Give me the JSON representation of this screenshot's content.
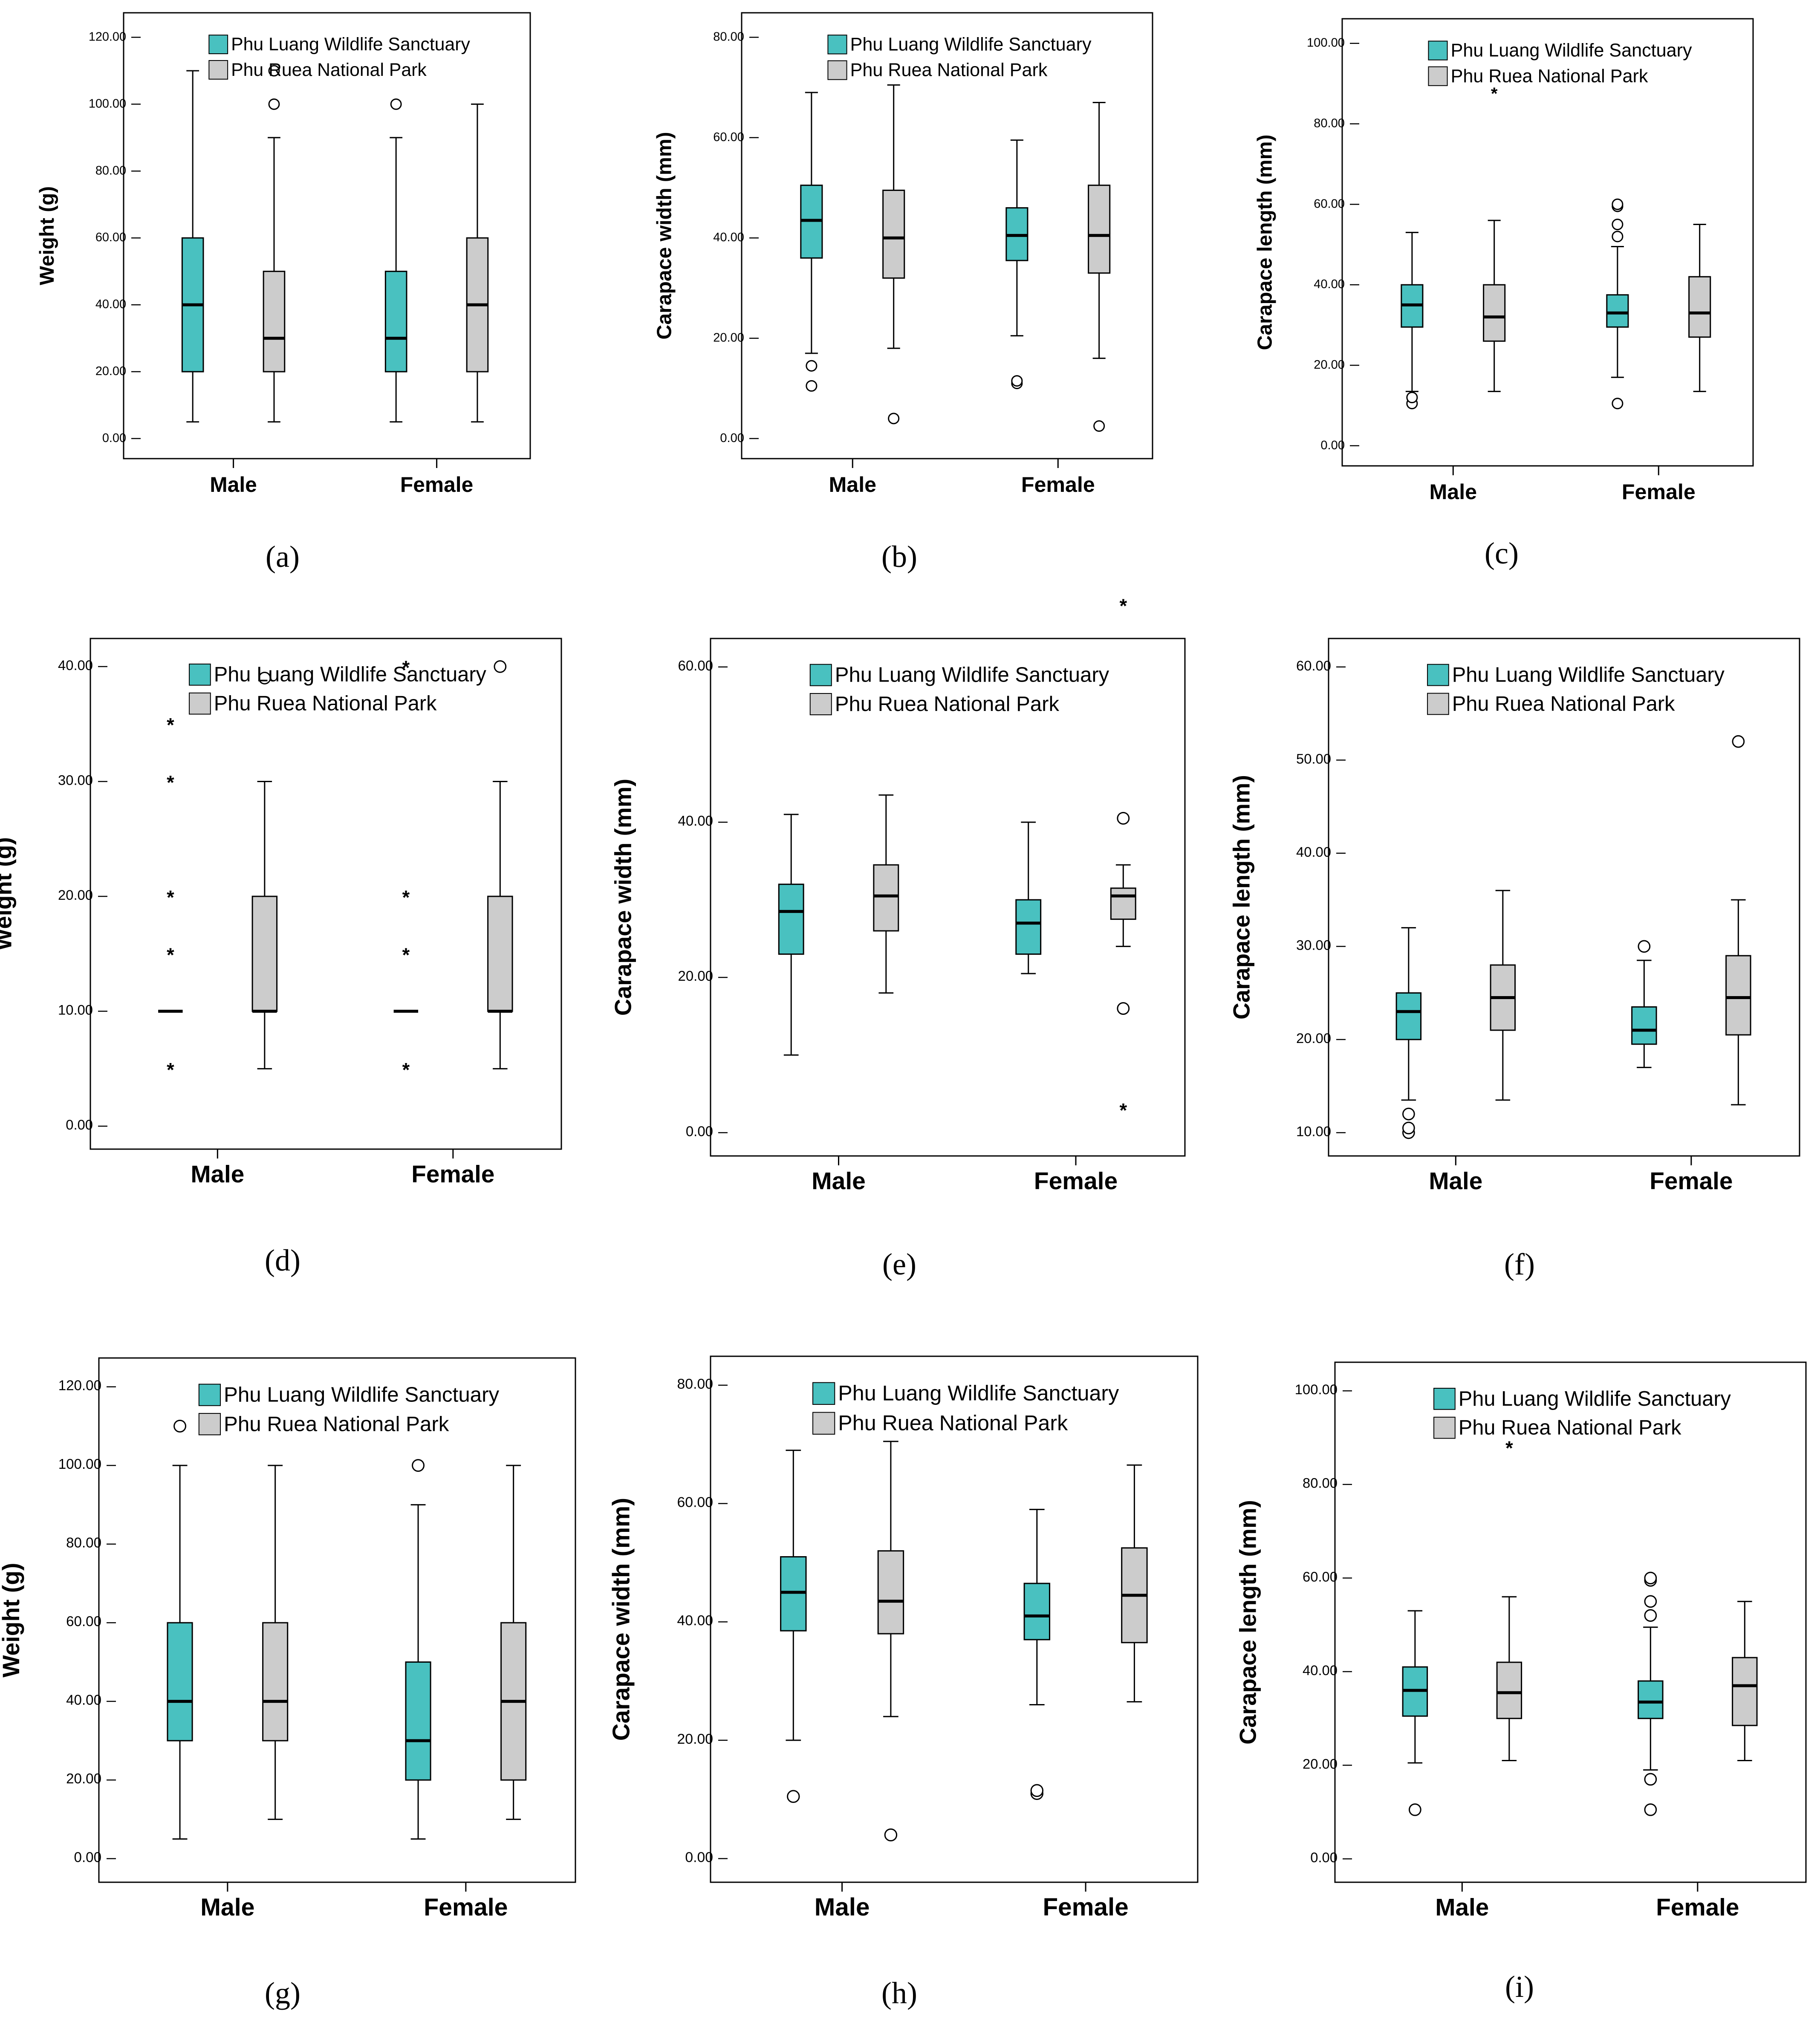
{
  "colors": {
    "teal": "#49c1c0",
    "gray": "#cccccc",
    "frame": "#000000"
  },
  "chart_data": [
    {
      "id": "a",
      "caption": "(a)",
      "type": "boxplot",
      "ylabel": "Weight (g)",
      "ylim": [
        0,
        120
      ],
      "yticks": [
        "0.00",
        "20.00",
        "40.00",
        "60.00",
        "80.00",
        "100.00",
        "120.00"
      ],
      "ytick_values": [
        0,
        20,
        40,
        60,
        80,
        100,
        120
      ],
      "categories": [
        "Male",
        "Female"
      ],
      "legend": [
        "Phu Luang Wildlife Sanctuary",
        "Phu Ruea National Park"
      ],
      "series": [
        {
          "name": "Phu Luang Wildlife Sanctuary",
          "boxes": [
            {
              "min": 5,
              "q1": 20,
              "median": 40,
              "q3": 60,
              "max": 110,
              "outliers": [],
              "extremes": []
            },
            {
              "min": 5,
              "q1": 20,
              "median": 30,
              "q3": 50,
              "max": 90,
              "outliers": [
                100
              ],
              "extremes": []
            }
          ]
        },
        {
          "name": "Phu Ruea National Park",
          "boxes": [
            {
              "min": 5,
              "q1": 20,
              "median": 30,
              "q3": 50,
              "max": 90,
              "outliers": [
                100,
                110
              ],
              "extremes": []
            },
            {
              "min": 5,
              "q1": 20,
              "median": 40,
              "q3": 60,
              "max": 100,
              "outliers": [],
              "extremes": []
            }
          ]
        }
      ]
    },
    {
      "id": "b",
      "caption": "(b)",
      "type": "boxplot",
      "ylabel": "Carapace width (mm)",
      "ylim": [
        0,
        80
      ],
      "yticks": [
        "0.00",
        "20.00",
        "40.00",
        "60.00",
        "80.00"
      ],
      "ytick_values": [
        0,
        20,
        40,
        60,
        80
      ],
      "categories": [
        "Male",
        "Female"
      ],
      "legend": [
        "Phu Luang Wildlife Sanctuary",
        "Phu Ruea National Park"
      ],
      "series": [
        {
          "name": "Phu Luang Wildlife Sanctuary",
          "boxes": [
            {
              "min": 17,
              "q1": 36,
              "median": 43.5,
              "q3": 50.5,
              "max": 69,
              "outliers": [
                10.5,
                14.5
              ],
              "extremes": []
            },
            {
              "min": 20.5,
              "q1": 35.5,
              "median": 40.5,
              "q3": 46,
              "max": 59.5,
              "outliers": [
                11,
                11.5
              ],
              "extremes": []
            }
          ]
        },
        {
          "name": "Phu Ruea National Park",
          "boxes": [
            {
              "min": 18,
              "q1": 32,
              "median": 40,
              "q3": 49.5,
              "max": 70.5,
              "outliers": [
                4
              ],
              "extremes": []
            },
            {
              "min": 16,
              "q1": 33,
              "median": 40.5,
              "q3": 50.5,
              "max": 67,
              "outliers": [
                2.5
              ],
              "extremes": []
            }
          ]
        }
      ]
    },
    {
      "id": "c",
      "caption": "(c)",
      "type": "boxplot",
      "ylabel": "Carapace length (mm)",
      "ylim": [
        0,
        100
      ],
      "yticks": [
        "0.00",
        "20.00",
        "40.00",
        "60.00",
        "80.00",
        "100.00"
      ],
      "ytick_values": [
        0,
        20,
        40,
        60,
        80,
        100
      ],
      "categories": [
        "Male",
        "Female"
      ],
      "legend": [
        "Phu Luang Wildlife Sanctuary",
        "Phu Ruea National Park"
      ],
      "series": [
        {
          "name": "Phu Luang Wildlife Sanctuary",
          "boxes": [
            {
              "min": 13.5,
              "q1": 29.5,
              "median": 35,
              "q3": 40,
              "max": 53,
              "outliers": [
                10.5,
                12
              ],
              "extremes": []
            },
            {
              "min": 17,
              "q1": 29.5,
              "median": 33,
              "q3": 37.5,
              "max": 49.5,
              "outliers": [
                52,
                55,
                59.5,
                60,
                10.5
              ],
              "extremes": []
            }
          ]
        },
        {
          "name": "Phu Ruea National Park",
          "boxes": [
            {
              "min": 13.5,
              "q1": 26,
              "median": 32,
              "q3": 40,
              "max": 56,
              "outliers": [],
              "extremes": [
                88
              ]
            },
            {
              "min": 13.5,
              "q1": 27,
              "median": 33,
              "q3": 42,
              "max": 55,
              "outliers": [],
              "extremes": []
            }
          ]
        }
      ]
    },
    {
      "id": "d",
      "caption": "(d)",
      "type": "boxplot",
      "ylabel": "Weight (g)",
      "ylim": [
        0,
        40
      ],
      "yticks": [
        "0.00",
        "10.00",
        "20.00",
        "30.00",
        "40.00"
      ],
      "ytick_values": [
        0,
        10,
        20,
        30,
        40
      ],
      "categories": [
        "Male",
        "Female"
      ],
      "legend": [
        "Phu Luang Wildlife Sanctuary",
        "Phu Ruea National Park"
      ],
      "series": [
        {
          "name": "Phu Luang Wildlife Sanctuary",
          "boxes": [
            {
              "min": 10,
              "q1": 10,
              "median": 10,
              "q3": 10,
              "max": 10,
              "outliers": [],
              "extremes": [
                5,
                15,
                20,
                30,
                35
              ]
            },
            {
              "min": 10,
              "q1": 10,
              "median": 10,
              "q3": 10,
              "max": 10,
              "outliers": [],
              "extremes": [
                5,
                15,
                20,
                40
              ]
            }
          ]
        },
        {
          "name": "Phu Ruea National Park",
          "boxes": [
            {
              "min": 5,
              "q1": 10,
              "median": 10,
              "q3": 20,
              "max": 30,
              "outliers": [
                39
              ],
              "extremes": []
            },
            {
              "min": 5,
              "q1": 10,
              "median": 10,
              "q3": 20,
              "max": 30,
              "outliers": [
                40
              ],
              "extremes": []
            }
          ]
        }
      ]
    },
    {
      "id": "e",
      "caption": "(e)",
      "type": "boxplot",
      "ylabel": "Carapace width (mm)",
      "ylim": [
        0,
        60
      ],
      "yticks": [
        "0.00",
        "20.00",
        "40.00",
        "60.00"
      ],
      "ytick_values": [
        0,
        20,
        40,
        60
      ],
      "categories": [
        "Male",
        "Female"
      ],
      "legend": [
        "Phu Luang Wildlife Sanctuary",
        "Phu Ruea National Park"
      ],
      "series": [
        {
          "name": "Phu Luang Wildlife Sanctuary",
          "boxes": [
            {
              "min": 10,
              "q1": 23,
              "median": 28.5,
              "q3": 32,
              "max": 41,
              "outliers": [],
              "extremes": []
            },
            {
              "min": 20.5,
              "q1": 23,
              "median": 27,
              "q3": 30,
              "max": 40,
              "outliers": [],
              "extremes": []
            }
          ]
        },
        {
          "name": "Phu Ruea National Park",
          "boxes": [
            {
              "min": 18,
              "q1": 26,
              "median": 30.5,
              "q3": 34.5,
              "max": 43.5,
              "outliers": [],
              "extremes": []
            },
            {
              "min": 24,
              "q1": 27.5,
              "median": 30.5,
              "q3": 31.5,
              "max": 34.5,
              "outliers": [
                16,
                40.5
              ],
              "extremes": [
                3,
                68
              ]
            }
          ]
        }
      ]
    },
    {
      "id": "f",
      "caption": "(f)",
      "type": "boxplot",
      "ylabel": "Carapace length (mm)",
      "ylim": [
        10,
        60
      ],
      "yticks": [
        "10.00",
        "20.00",
        "30.00",
        "40.00",
        "50.00",
        "60.00"
      ],
      "ytick_values": [
        10,
        20,
        30,
        40,
        50,
        60
      ],
      "categories": [
        "Male",
        "Female"
      ],
      "legend": [
        "Phu Luang Wildlife Sanctuary",
        "Phu Ruea National Park"
      ],
      "series": [
        {
          "name": "Phu Luang Wildlife Sanctuary",
          "boxes": [
            {
              "min": 13.5,
              "q1": 20,
              "median": 23,
              "q3": 25,
              "max": 32,
              "outliers": [
                10,
                10.5,
                12
              ],
              "extremes": []
            },
            {
              "min": 17,
              "q1": 19.5,
              "median": 21,
              "q3": 23.5,
              "max": 28.5,
              "outliers": [
                30
              ],
              "extremes": []
            }
          ]
        },
        {
          "name": "Phu Ruea National Park",
          "boxes": [
            {
              "min": 13.5,
              "q1": 21,
              "median": 24.5,
              "q3": 28,
              "max": 36,
              "outliers": [],
              "extremes": []
            },
            {
              "min": 13,
              "q1": 20.5,
              "median": 24.5,
              "q3": 29,
              "max": 35,
              "outliers": [
                52
              ],
              "extremes": []
            }
          ]
        }
      ]
    },
    {
      "id": "g",
      "caption": "(g)",
      "type": "boxplot",
      "ylabel": "Weight (g)",
      "ylim": [
        0,
        120
      ],
      "yticks": [
        "0.00",
        "20.00",
        "40.00",
        "60.00",
        "80.00",
        "100.00",
        "120.00"
      ],
      "ytick_values": [
        0,
        20,
        40,
        60,
        80,
        100,
        120
      ],
      "categories": [
        "Male",
        "Female"
      ],
      "legend": [
        "Phu Luang Wildlife Sanctuary",
        "Phu Ruea National Park"
      ],
      "series": [
        {
          "name": "Phu Luang Wildlife Sanctuary",
          "boxes": [
            {
              "min": 5,
              "q1": 30,
              "median": 40,
              "q3": 60,
              "max": 100,
              "outliers": [
                110
              ],
              "extremes": []
            },
            {
              "min": 5,
              "q1": 20,
              "median": 30,
              "q3": 50,
              "max": 90,
              "outliers": [
                100
              ],
              "extremes": []
            }
          ]
        },
        {
          "name": "Phu Ruea National Park",
          "boxes": [
            {
              "min": 10,
              "q1": 30,
              "median": 40,
              "q3": 60,
              "max": 100,
              "outliers": [],
              "extremes": []
            },
            {
              "min": 10,
              "q1": 20,
              "median": 40,
              "q3": 60,
              "max": 100,
              "outliers": [],
              "extremes": []
            }
          ]
        }
      ]
    },
    {
      "id": "h",
      "caption": "(h)",
      "type": "boxplot",
      "ylabel": "Carapace width (mm)",
      "ylim": [
        0,
        80
      ],
      "yticks": [
        "0.00",
        "20.00",
        "40.00",
        "60.00",
        "80.00"
      ],
      "ytick_values": [
        0,
        20,
        40,
        60,
        80
      ],
      "categories": [
        "Male",
        "Female"
      ],
      "legend": [
        "Phu Luang Wildlife Sanctuary",
        "Phu Ruea National Park"
      ],
      "series": [
        {
          "name": "Phu Luang Wildlife Sanctuary",
          "boxes": [
            {
              "min": 20,
              "q1": 38.5,
              "median": 45,
              "q3": 51,
              "max": 69,
              "outliers": [
                10.5
              ],
              "extremes": []
            },
            {
              "min": 26,
              "q1": 37,
              "median": 41,
              "q3": 46.5,
              "max": 59,
              "outliers": [
                11,
                11.5
              ],
              "extremes": []
            }
          ]
        },
        {
          "name": "Phu Ruea National Park",
          "boxes": [
            {
              "min": 24,
              "q1": 38,
              "median": 43.5,
              "q3": 52,
              "max": 70.5,
              "outliers": [
                4
              ],
              "extremes": []
            },
            {
              "min": 26.5,
              "q1": 36.5,
              "median": 44.5,
              "q3": 52.5,
              "max": 66.5,
              "outliers": [],
              "extremes": []
            }
          ]
        }
      ]
    },
    {
      "id": "i",
      "caption": "(i)",
      "type": "boxplot",
      "ylabel": "Carapace length (mm)",
      "ylim": [
        0,
        100
      ],
      "yticks": [
        "0.00",
        "20.00",
        "40.00",
        "60.00",
        "80.00",
        "100.00"
      ],
      "ytick_values": [
        0,
        20,
        40,
        60,
        80,
        100
      ],
      "categories": [
        "Male",
        "Female"
      ],
      "legend": [
        "Phu Luang Wildlife Sanctuary",
        "Phu Ruea National Park"
      ],
      "series": [
        {
          "name": "Phu Luang Wildlife Sanctuary",
          "boxes": [
            {
              "min": 20.5,
              "q1": 30.5,
              "median": 36,
              "q3": 41,
              "max": 53,
              "outliers": [
                10.5
              ],
              "extremes": []
            },
            {
              "min": 19,
              "q1": 30,
              "median": 33.5,
              "q3": 38,
              "max": 49.5,
              "outliers": [
                10.5,
                17,
                52,
                55,
                59.5,
                60
              ],
              "extremes": []
            }
          ]
        },
        {
          "name": "Phu Ruea National Park",
          "boxes": [
            {
              "min": 21,
              "q1": 30,
              "median": 35.5,
              "q3": 42,
              "max": 56,
              "outliers": [],
              "extremes": [
                88
              ]
            },
            {
              "min": 21,
              "q1": 28.5,
              "median": 37,
              "q3": 43,
              "max": 55,
              "outliers": [],
              "extremes": []
            }
          ]
        }
      ]
    }
  ]
}
